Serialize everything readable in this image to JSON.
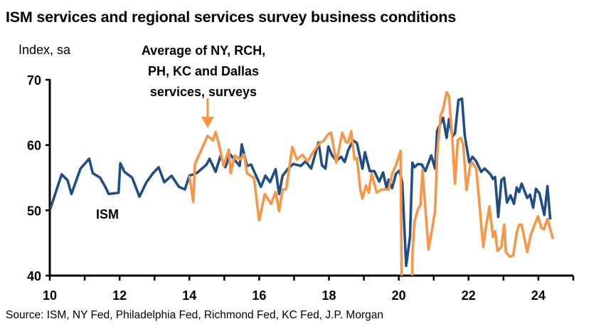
{
  "chart_data": {
    "type": "line",
    "title": "ISM services and regional services survey business conditions",
    "ylabel": "Index, sa",
    "xlabel": "",
    "xlim": [
      2010,
      2025
    ],
    "ylim": [
      40,
      70
    ],
    "yticks": [
      40,
      50,
      60,
      70
    ],
    "xticks": [
      2010,
      2012,
      2014,
      2016,
      2018,
      2020,
      2022,
      2024
    ],
    "xtick_labels": [
      "10",
      "12",
      "14",
      "16",
      "18",
      "20",
      "22",
      "24"
    ],
    "ytick_labels": [
      "40",
      "50",
      "60",
      "70"
    ],
    "grid": false,
    "annotation": [
      "Average of NY, RCH,",
      "PH, KC and Dallas",
      "services, surveys"
    ],
    "source": "Source: ISM, NY Fed, Philadelphia Fed, Richmond Fed, KC Fed, J.P. Morgan",
    "series": [
      {
        "name": "ISM",
        "color": "#1f4e87",
        "x": [
          2010.0,
          2010.34,
          2010.51,
          2010.62,
          2010.88,
          2011.13,
          2011.23,
          2011.44,
          2011.59,
          2011.69,
          2011.97,
          2012.02,
          2012.14,
          2012.36,
          2012.57,
          2012.77,
          2012.96,
          2013.12,
          2013.28,
          2013.49,
          2013.7,
          2013.87,
          2014.0,
          2014.21,
          2014.49,
          2014.58,
          2014.75,
          2014.89,
          2015.03,
          2015.16,
          2015.44,
          2015.5,
          2015.65,
          2015.77,
          2016.05,
          2016.18,
          2016.31,
          2016.47,
          2016.57,
          2016.67,
          2016.83,
          2016.98,
          2017.19,
          2017.33,
          2017.49,
          2017.7,
          2017.8,
          2017.9,
          2017.98,
          2018.08,
          2018.21,
          2018.35,
          2018.45,
          2018.55,
          2018.69,
          2018.8,
          2018.96,
          2019.03,
          2019.17,
          2019.3,
          2019.44,
          2019.55,
          2019.65,
          2019.71,
          2019.81,
          2019.92,
          2020.02,
          2020.1,
          2020.21,
          2020.32,
          2020.39,
          2020.45,
          2020.55,
          2020.66,
          2020.76,
          2020.93,
          2021.04,
          2021.1,
          2021.27,
          2021.37,
          2021.44,
          2021.54,
          2021.61,
          2021.71,
          2021.81,
          2021.89,
          2022.02,
          2022.11,
          2022.22,
          2022.36,
          2022.46,
          2022.63,
          2022.7,
          2022.76,
          2022.85,
          2022.94,
          2023.02,
          2023.1,
          2023.2,
          2023.3,
          2023.38,
          2023.45,
          2023.52,
          2023.68,
          2023.76,
          2023.85,
          2023.93,
          2024.03,
          2024.17,
          2024.26,
          2024.34
        ],
        "values": [
          50.0,
          55.5,
          54.6,
          52.5,
          56.4,
          57.9,
          55.7,
          55.0,
          53.6,
          52.5,
          52.7,
          57.2,
          55.9,
          55.0,
          52.1,
          54.3,
          55.7,
          56.6,
          54.3,
          55.3,
          53.6,
          53.2,
          55.3,
          55.7,
          57.0,
          57.9,
          55.9,
          58.3,
          56.6,
          58.6,
          56.8,
          60.1,
          56.8,
          57.0,
          53.6,
          55.3,
          54.3,
          56.3,
          52.5,
          55.3,
          56.4,
          57.1,
          56.8,
          57.5,
          56.4,
          60.4,
          56.9,
          56.4,
          59.8,
          58.5,
          57.6,
          58.2,
          57.4,
          59.2,
          60.7,
          60.3,
          56.4,
          58.9,
          56.0,
          56.0,
          54.4,
          55.8,
          53.4,
          54.7,
          53.4,
          55.6,
          56.1,
          54.2,
          41.5,
          45.9,
          57.3,
          56.6,
          57.1,
          57.0,
          56.0,
          58.4,
          56.4,
          62.2,
          64.2,
          61.1,
          64.0,
          61.3,
          61.8,
          66.9,
          67.1,
          61.5,
          57.3,
          58.2,
          57.5,
          55.9,
          56.4,
          55.5,
          54.8,
          55.1,
          49.0,
          54.6,
          55.0,
          51.2,
          52.3,
          51.0,
          53.5,
          52.8,
          54.1,
          51.9,
          52.4,
          50.4,
          53.3,
          52.6,
          49.3,
          53.7,
          48.6
        ]
      },
      {
        "color": "#f79646",
        "x": [
          2014.0,
          2014.11,
          2014.16,
          2014.28,
          2014.52,
          2014.68,
          2014.75,
          2014.82,
          2014.98,
          2015.13,
          2015.18,
          2015.3,
          2015.44,
          2015.57,
          2015.65,
          2015.75,
          2015.85,
          2016.0,
          2016.16,
          2016.34,
          2016.47,
          2016.57,
          2016.67,
          2016.77,
          2016.95,
          2017.08,
          2017.24,
          2017.39,
          2017.54,
          2017.75,
          2017.84,
          2017.98,
          2018.06,
          2018.21,
          2018.38,
          2018.49,
          2018.55,
          2018.64,
          2018.73,
          2018.8,
          2018.9,
          2018.96,
          2019.06,
          2019.14,
          2019.22,
          2019.37,
          2019.51,
          2019.71,
          2019.81,
          2019.92,
          2020.05,
          2020.1,
          2020.36,
          2020.39,
          2020.45,
          2020.55,
          2020.62,
          2020.68,
          2020.85,
          2020.96,
          2021.04,
          2021.1,
          2021.2,
          2021.27,
          2021.37,
          2021.44,
          2021.54,
          2021.61,
          2021.69,
          2021.78,
          2021.85,
          2021.94,
          2022.05,
          2022.11,
          2022.22,
          2022.42,
          2022.5,
          2022.6,
          2022.7,
          2022.76,
          2022.83,
          2022.94,
          2023.02,
          2023.07,
          2023.18,
          2023.28,
          2023.38,
          2023.45,
          2023.52,
          2023.68,
          2023.78,
          2023.88,
          2023.99,
          2024.09,
          2024.16,
          2024.26,
          2024.42
        ],
        "values": [
          55.3,
          51.3,
          57.1,
          58.5,
          61.4,
          60.7,
          62.0,
          60.7,
          56.8,
          59.3,
          55.7,
          58.4,
          57.8,
          58.5,
          55.7,
          55.3,
          55.0,
          48.5,
          52.5,
          51.0,
          52.8,
          49.9,
          53.2,
          53.2,
          59.7,
          57.8,
          58.5,
          57.5,
          58.9,
          60.4,
          60.6,
          61.7,
          61.9,
          57.3,
          61.9,
          60.4,
          60.4,
          62.1,
          57.8,
          58.0,
          53.1,
          51.8,
          53.8,
          52.7,
          55.6,
          52.7,
          53.2,
          53.2,
          55.6,
          56.9,
          59.1,
          30.0,
          30.0,
          43.3,
          48.2,
          50.2,
          50.8,
          56.2,
          44.0,
          47.3,
          49.9,
          58.5,
          64.6,
          65.5,
          68.1,
          67.5,
          60.4,
          54.1,
          60.8,
          61.1,
          60.0,
          53.1,
          57.1,
          57.3,
          56.4,
          44.4,
          47.5,
          50.6,
          45.9,
          46.8,
          43.8,
          44.4,
          47.8,
          43.6,
          42.9,
          43.1,
          46.6,
          47.8,
          47.8,
          43.6,
          46.2,
          47.6,
          49.1,
          47.3,
          47.1,
          48.7,
          45.6
        ]
      }
    ]
  }
}
